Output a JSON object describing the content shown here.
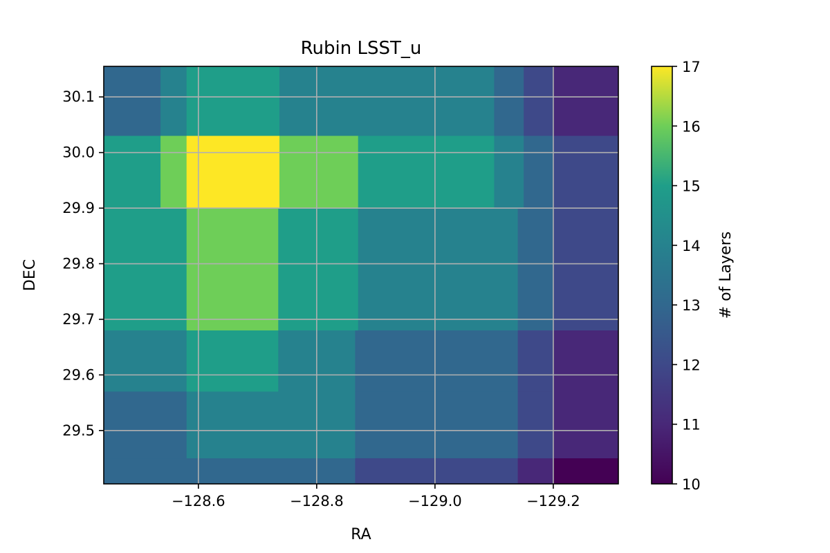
{
  "chart_data": {
    "type": "heatmap",
    "title": "Rubin LSST_u",
    "xlabel": "RA",
    "ylabel": "DEC",
    "xlim": [
      -128.44,
      -129.31
    ],
    "ylim": [
      29.404,
      30.155
    ],
    "xticks": [
      -128.6,
      -128.8,
      -129.0,
      -129.2
    ],
    "xtick_labels": [
      "−128.6",
      "−128.8",
      "−129.0",
      "−129.2"
    ],
    "yticks": [
      29.5,
      29.6,
      29.7,
      29.8,
      29.9,
      30.0,
      30.1
    ],
    "ytick_labels": [
      "29.5",
      "29.6",
      "29.7",
      "29.8",
      "29.9",
      "30.0",
      "30.1"
    ],
    "grid": true,
    "colormap": "viridis",
    "colorbar": {
      "label": "# of Layers",
      "vmin": 10,
      "vmax": 17,
      "ticks": [
        10,
        11,
        12,
        13,
        14,
        15,
        16,
        17
      ],
      "tick_labels": [
        "10",
        "11",
        "12",
        "13",
        "14",
        "15",
        "16",
        "17"
      ]
    },
    "cells": [
      {
        "ra": [
          -128.44,
          -128.536
        ],
        "dec": [
          30.03,
          30.155
        ],
        "value": 13
      },
      {
        "ra": [
          -128.536,
          -128.58
        ],
        "dec": [
          30.03,
          30.155
        ],
        "value": 14
      },
      {
        "ra": [
          -128.58,
          -128.737
        ],
        "dec": [
          30.03,
          30.155
        ],
        "value": 15
      },
      {
        "ra": [
          -128.737,
          -129.1
        ],
        "dec": [
          30.03,
          30.155
        ],
        "value": 14
      },
      {
        "ra": [
          -129.1,
          -129.15
        ],
        "dec": [
          30.03,
          30.155
        ],
        "value": 13
      },
      {
        "ra": [
          -129.15,
          -129.2
        ],
        "dec": [
          30.03,
          30.155
        ],
        "value": 12
      },
      {
        "ra": [
          -129.2,
          -129.31
        ],
        "dec": [
          30.03,
          30.155
        ],
        "value": 11
      },
      {
        "ra": [
          -128.44,
          -128.536
        ],
        "dec": [
          29.9,
          30.03
        ],
        "value": 15
      },
      {
        "ra": [
          -128.536,
          -128.58
        ],
        "dec": [
          29.9,
          30.03
        ],
        "value": 16
      },
      {
        "ra": [
          -128.58,
          -128.737
        ],
        "dec": [
          29.9,
          30.03
        ],
        "value": 17
      },
      {
        "ra": [
          -128.737,
          -128.87
        ],
        "dec": [
          29.9,
          30.03
        ],
        "value": 16
      },
      {
        "ra": [
          -128.87,
          -129.1
        ],
        "dec": [
          29.9,
          30.03
        ],
        "value": 15
      },
      {
        "ra": [
          -129.1,
          -129.15
        ],
        "dec": [
          29.9,
          30.03
        ],
        "value": 14
      },
      {
        "ra": [
          -129.15,
          -129.2
        ],
        "dec": [
          29.9,
          30.03
        ],
        "value": 13
      },
      {
        "ra": [
          -129.2,
          -129.31
        ],
        "dec": [
          29.9,
          30.03
        ],
        "value": 12
      },
      {
        "ra": [
          -128.44,
          -128.58
        ],
        "dec": [
          29.68,
          29.9
        ],
        "value": 15
      },
      {
        "ra": [
          -128.58,
          -128.735
        ],
        "dec": [
          29.68,
          29.9
        ],
        "value": 16
      },
      {
        "ra": [
          -128.735,
          -128.87
        ],
        "dec": [
          29.68,
          29.9
        ],
        "value": 15
      },
      {
        "ra": [
          -128.87,
          -129.14
        ],
        "dec": [
          29.68,
          29.9
        ],
        "value": 14
      },
      {
        "ra": [
          -129.14,
          -129.2
        ],
        "dec": [
          29.68,
          29.9
        ],
        "value": 13
      },
      {
        "ra": [
          -129.2,
          -129.31
        ],
        "dec": [
          29.68,
          29.9
        ],
        "value": 12
      },
      {
        "ra": [
          -128.44,
          -128.58
        ],
        "dec": [
          29.57,
          29.68
        ],
        "value": 14
      },
      {
        "ra": [
          -128.58,
          -128.735
        ],
        "dec": [
          29.57,
          29.68
        ],
        "value": 15
      },
      {
        "ra": [
          -128.735,
          -128.865
        ],
        "dec": [
          29.57,
          29.68
        ],
        "value": 14
      },
      {
        "ra": [
          -128.865,
          -129.14
        ],
        "dec": [
          29.57,
          29.68
        ],
        "value": 13
      },
      {
        "ra": [
          -129.14,
          -129.2
        ],
        "dec": [
          29.57,
          29.68
        ],
        "value": 12
      },
      {
        "ra": [
          -129.2,
          -129.31
        ],
        "dec": [
          29.57,
          29.68
        ],
        "value": 11
      },
      {
        "ra": [
          -128.44,
          -128.58
        ],
        "dec": [
          29.45,
          29.57
        ],
        "value": 13
      },
      {
        "ra": [
          -128.58,
          -128.865
        ],
        "dec": [
          29.45,
          29.57
        ],
        "value": 14
      },
      {
        "ra": [
          -128.865,
          -129.14
        ],
        "dec": [
          29.45,
          29.57
        ],
        "value": 13
      },
      {
        "ra": [
          -129.14,
          -129.2
        ],
        "dec": [
          29.45,
          29.57
        ],
        "value": 12
      },
      {
        "ra": [
          -129.2,
          -129.31
        ],
        "dec": [
          29.45,
          29.57
        ],
        "value": 11
      },
      {
        "ra": [
          -128.44,
          -128.865
        ],
        "dec": [
          29.404,
          29.45
        ],
        "value": 13
      },
      {
        "ra": [
          -128.865,
          -129.14
        ],
        "dec": [
          29.404,
          29.45
        ],
        "value": 12
      },
      {
        "ra": [
          -129.14,
          -129.2
        ],
        "dec": [
          29.404,
          29.45
        ],
        "value": 11
      },
      {
        "ra": [
          -129.2,
          -129.31
        ],
        "dec": [
          29.404,
          29.45
        ],
        "value": 10
      }
    ]
  }
}
